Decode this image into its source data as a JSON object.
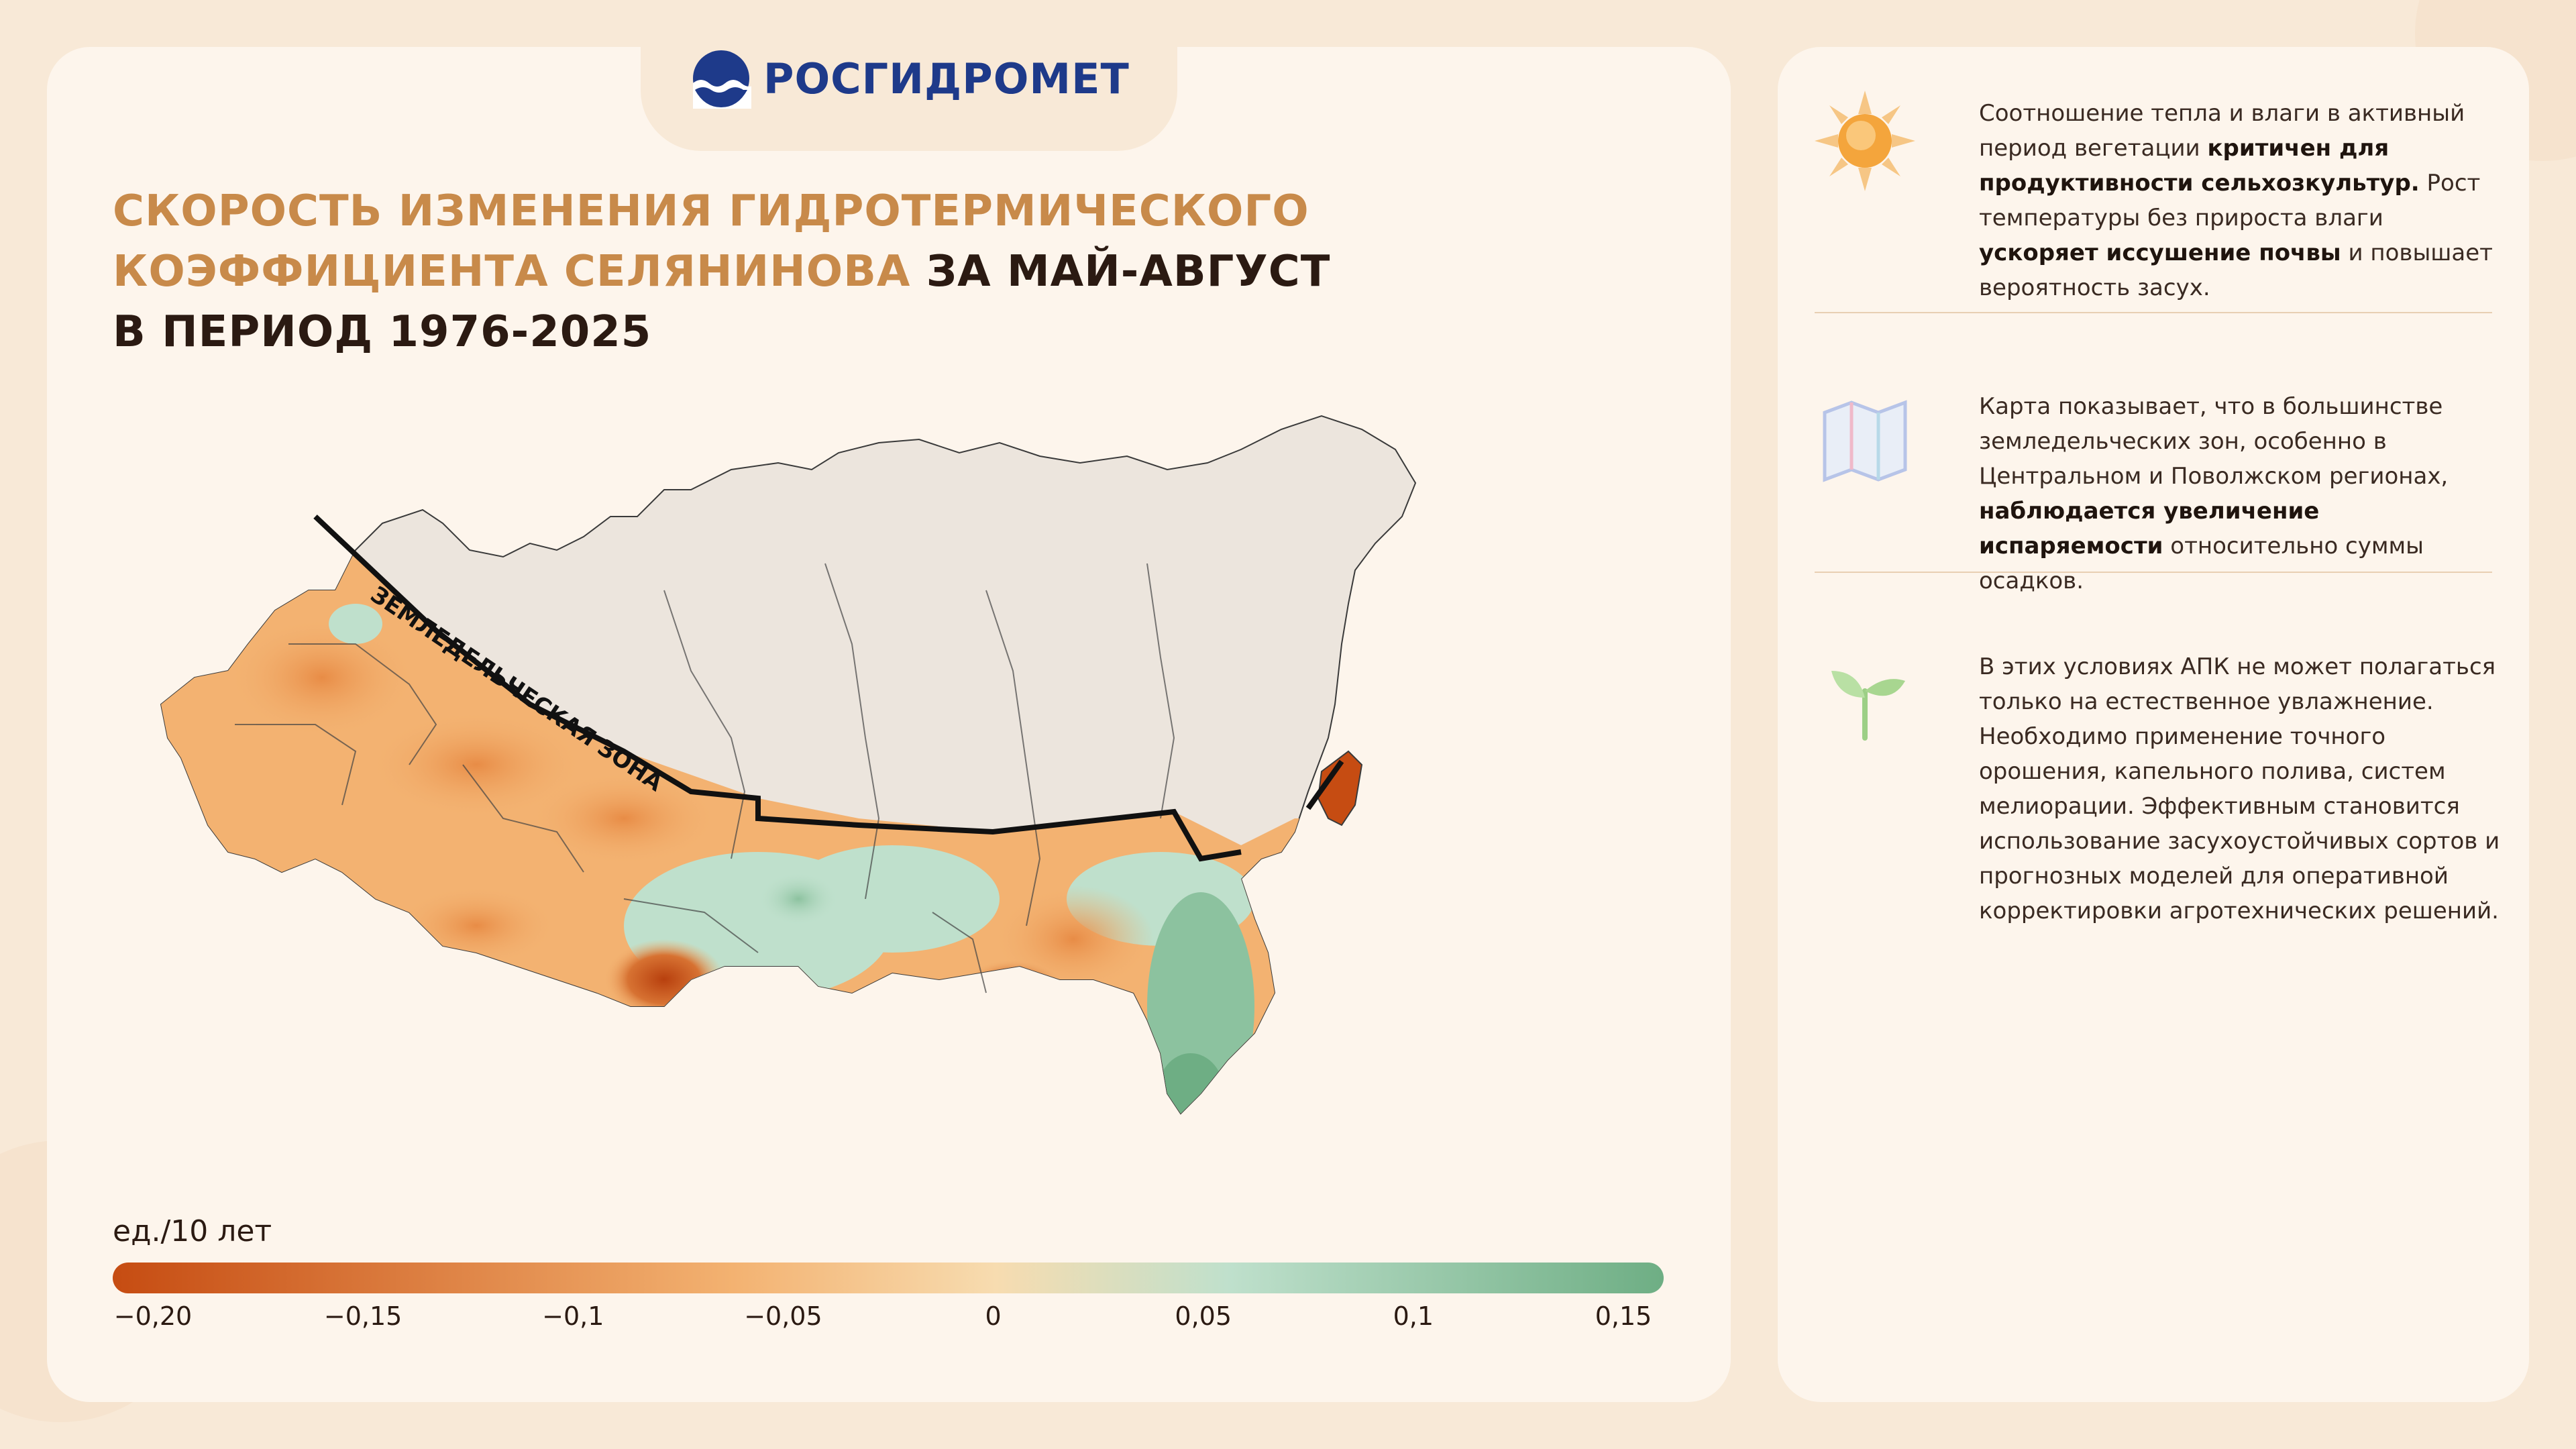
{
  "brand": {
    "name": "РОСГИДРОМЕТ"
  },
  "title": {
    "accent": "СКОРОСТЬ ИЗМЕНЕНИЯ ГИДРОТЕРМИЧЕСКОГО КОЭФФИЦИЕНТА СЕЛЯНИНОВА",
    "rest_line1": " ЗА МАЙ-АВГУСТ",
    "rest_line2": "В ПЕРИОД 1976-2025"
  },
  "map": {
    "zone_label": "ЗЕМЛЕДЕЛЬЧЕСКАЯ ЗОНА"
  },
  "legend": {
    "unit": "ед./10 лет",
    "ticks": [
      "−0,20",
      "−0,15",
      "−0,1",
      "−0,05",
      "0",
      "0,05",
      "0,1",
      "0,15"
    ],
    "colors": {
      "min": "#c64c12",
      "mid_neg": "#f3b271",
      "zero": "#f7dcb0",
      "mid_pos": "#bfe0cc",
      "max": "#6eae84"
    }
  },
  "info": [
    {
      "icon": "sun-icon",
      "parts": [
        {
          "t": "Соотношение тепла и влаги в активный период вегетации ",
          "b": false
        },
        {
          "t": "критичен для продуктивности сельхозкультур.",
          "b": true
        },
        {
          "t": " Рост температуры без прироста влаги ",
          "b": false
        },
        {
          "t": "ускоряет иссушение почвы",
          "b": true
        },
        {
          "t": " и повышает вероятность засух.",
          "b": false
        }
      ]
    },
    {
      "icon": "map-icon",
      "parts": [
        {
          "t": "Карта показывает, что в большинстве земледельческих зон, особенно в Центральном и Поволжском регионах, ",
          "b": false
        },
        {
          "t": "наблюдается увеличение испаряемости",
          "b": true
        },
        {
          "t": " относительно суммы осадков.",
          "b": false
        }
      ]
    },
    {
      "icon": "sprout-icon",
      "parts": [
        {
          "t": "В этих условиях АПК не может полагаться только на естественное увлажнение. Необходимо применение точного орошения, капельного полива, систем мелиорации. Эффективным становится использование засухоустойчивых сортов и прогнозных моделей для оперативной корректировки агротехнических решений.",
          "b": false
        }
      ]
    }
  ]
}
